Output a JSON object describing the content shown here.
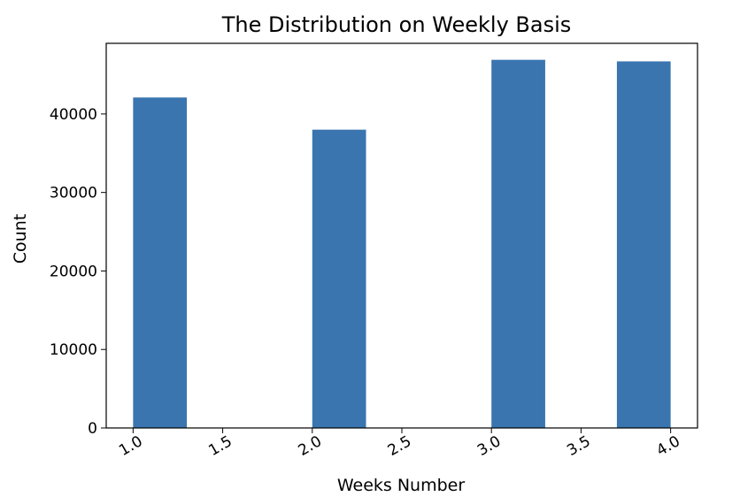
{
  "chart_data": {
    "type": "bar",
    "title": "The Distribution on Weekly Basis",
    "xlabel": "Weeks Number",
    "ylabel": "Count",
    "xlim": [
      0.85,
      4.15
    ],
    "ylim": [
      0,
      49000
    ],
    "xticks": [
      "1.0",
      "1.5",
      "2.0",
      "2.5",
      "3.0",
      "3.5",
      "4.0"
    ],
    "xtick_values": [
      1.0,
      1.5,
      2.0,
      2.5,
      3.0,
      3.5,
      4.0
    ],
    "yticks": [
      "0",
      "10000",
      "20000",
      "30000",
      "40000"
    ],
    "ytick_values": [
      0,
      10000,
      20000,
      30000,
      40000
    ],
    "bar_width": 0.3,
    "bars": [
      {
        "left": 1.0,
        "value": 42100
      },
      {
        "left": 2.0,
        "value": 38000
      },
      {
        "left": 3.0,
        "value": 46900
      },
      {
        "left": 3.7,
        "value": 46700
      }
    ],
    "bar_color": "#3a75b0",
    "grid": false,
    "x_tick_rotation": -30
  }
}
